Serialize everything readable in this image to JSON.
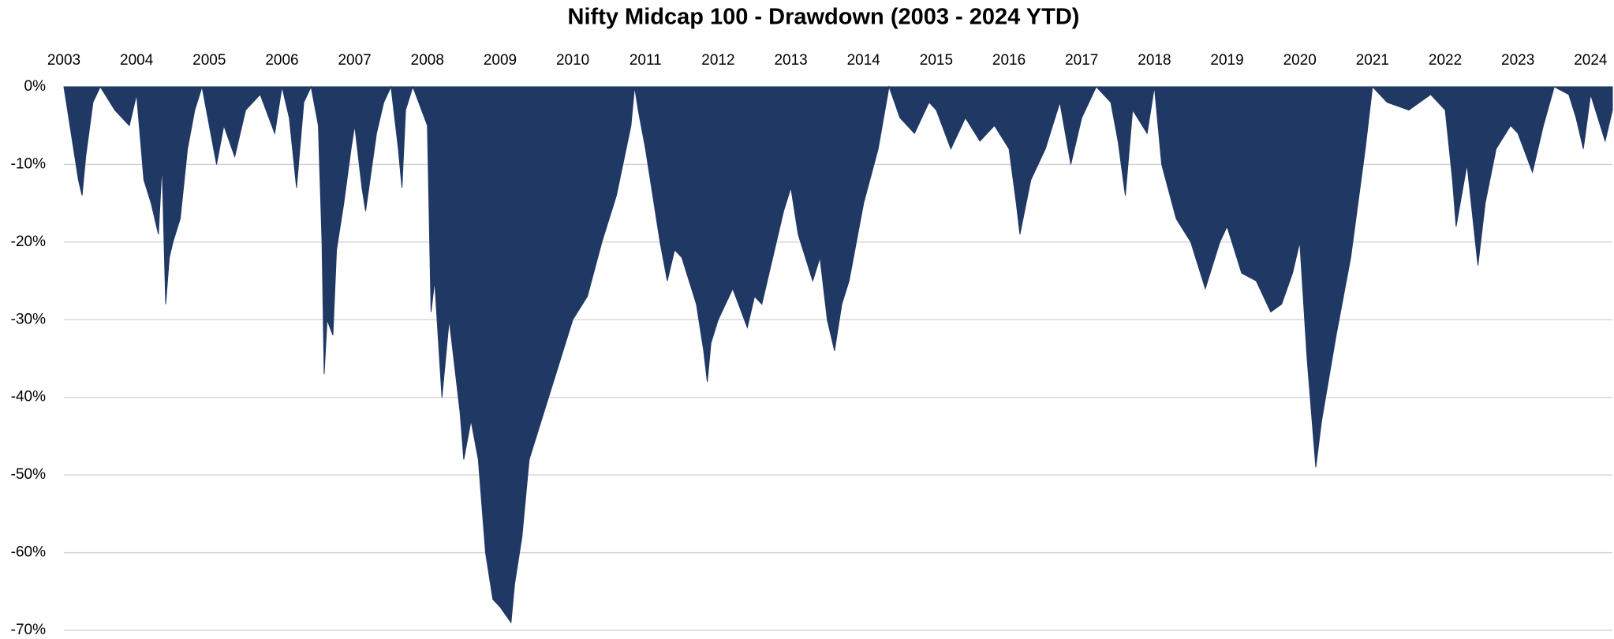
{
  "chart_data": {
    "type": "area",
    "title": "Nifty Midcap 100 - Drawdown (2003 - 2024 YTD)",
    "color": "#203864",
    "grid": true,
    "xlim": [
      2003,
      2024.3
    ],
    "xticks": [
      2003,
      2004,
      2005,
      2006,
      2007,
      2008,
      2009,
      2010,
      2011,
      2012,
      2013,
      2014,
      2015,
      2016,
      2017,
      2018,
      2019,
      2020,
      2021,
      2022,
      2023,
      2024
    ],
    "ylim": [
      -70,
      0
    ],
    "yticks": [
      {
        "value": 0,
        "label": "0%"
      },
      {
        "value": -10,
        "label": "-10%"
      },
      {
        "value": -20,
        "label": "-20%"
      },
      {
        "value": -30,
        "label": "-30%"
      },
      {
        "value": -40,
        "label": "-40%"
      },
      {
        "value": -50,
        "label": "-50%"
      },
      {
        "value": -60,
        "label": "-60%"
      },
      {
        "value": -70,
        "label": "-70%"
      }
    ],
    "x": [
      2003.0,
      2003.1,
      2003.2,
      2003.25,
      2003.3,
      2003.4,
      2003.5,
      2003.7,
      2003.9,
      2004.0,
      2004.1,
      2004.2,
      2004.3,
      2004.35,
      2004.4,
      2004.45,
      2004.5,
      2004.6,
      2004.7,
      2004.8,
      2004.9,
      2005.1,
      2005.2,
      2005.35,
      2005.5,
      2005.7,
      2005.9,
      2006.0,
      2006.1,
      2006.2,
      2006.3,
      2006.4,
      2006.5,
      2006.55,
      2006.58,
      2006.62,
      2006.7,
      2006.75,
      2006.85,
      2006.95,
      2007.0,
      2007.1,
      2007.15,
      2007.3,
      2007.4,
      2007.5,
      2007.6,
      2007.65,
      2007.7,
      2007.8,
      2008.0,
      2008.05,
      2008.1,
      2008.2,
      2008.3,
      2008.45,
      2008.5,
      2008.6,
      2008.7,
      2008.8,
      2008.9,
      2009.0,
      2009.15,
      2009.2,
      2009.3,
      2009.4,
      2009.6,
      2009.8,
      2010.0,
      2010.2,
      2010.4,
      2010.6,
      2010.8,
      2010.85,
      2010.9,
      2011.0,
      2011.1,
      2011.2,
      2011.3,
      2011.4,
      2011.5,
      2011.6,
      2011.7,
      2011.8,
      2011.85,
      2011.9,
      2012.0,
      2012.2,
      2012.4,
      2012.5,
      2012.6,
      2012.7,
      2012.9,
      2013.0,
      2013.1,
      2013.2,
      2013.3,
      2013.4,
      2013.5,
      2013.6,
      2013.7,
      2013.8,
      2013.9,
      2014.0,
      2014.2,
      2014.35,
      2014.5,
      2014.7,
      2014.9,
      2015.0,
      2015.2,
      2015.4,
      2015.6,
      2015.8,
      2016.0,
      2016.1,
      2016.15,
      2016.3,
      2016.5,
      2016.7,
      2016.85,
      2017.0,
      2017.2,
      2017.4,
      2017.5,
      2017.6,
      2017.7,
      2017.9,
      2018.0,
      2018.1,
      2018.3,
      2018.5,
      2018.7,
      2018.9,
      2019.0,
      2019.2,
      2019.4,
      2019.6,
      2019.75,
      2019.9,
      2020.0,
      2020.1,
      2020.22,
      2020.3,
      2020.5,
      2020.7,
      2020.9,
      2021.0,
      2021.2,
      2021.5,
      2021.8,
      2022.0,
      2022.1,
      2022.15,
      2022.3,
      2022.45,
      2022.55,
      2022.7,
      2022.9,
      2023.0,
      2023.2,
      2023.35,
      2023.5,
      2023.7,
      2023.8,
      2023.9,
      2024.0,
      2024.1,
      2024.2,
      2024.3
    ],
    "values": [
      0,
      -6,
      -12,
      -14,
      -9,
      -2,
      0,
      -3,
      -5,
      -1,
      -12,
      -15,
      -19,
      -10,
      -28,
      -22,
      -20,
      -17,
      -8,
      -3,
      0,
      -10,
      -5,
      -9,
      -3,
      -1,
      -6,
      0,
      -4,
      -13,
      -2,
      0,
      -5,
      -20,
      -37,
      -30,
      -32,
      -21,
      -15,
      -8,
      -5,
      -13,
      -16,
      -6,
      -2,
      0,
      -8,
      -13,
      -3,
      0,
      -5,
      -29,
      -25,
      -40,
      -30,
      -42,
      -48,
      -43,
      -48,
      -60,
      -66,
      -67,
      -69,
      -64,
      -58,
      -48,
      -42,
      -36,
      -30,
      -27,
      -20,
      -14,
      -5,
      0,
      -3,
      -8,
      -14,
      -20,
      -25,
      -21,
      -22,
      -25,
      -28,
      -34,
      -38,
      -33,
      -30,
      -26,
      -31,
      -27,
      -28,
      -24,
      -16,
      -13,
      -19,
      -22,
      -25,
      -22,
      -30,
      -34,
      -28,
      -25,
      -20,
      -15,
      -8,
      0,
      -4,
      -6,
      -2,
      -3,
      -8,
      -4,
      -7,
      -5,
      -8,
      -15,
      -19,
      -12,
      -8,
      -2,
      -10,
      -4,
      0,
      -2,
      -7,
      -14,
      -3,
      -6,
      0,
      -10,
      -17,
      -20,
      -26,
      -20,
      -18,
      -24,
      -25,
      -29,
      -28,
      -24,
      -20,
      -35,
      -49,
      -43,
      -32,
      -22,
      -8,
      0,
      -2,
      -3,
      -1,
      -3,
      -12,
      -18,
      -10,
      -23,
      -15,
      -8,
      -5,
      -6,
      -11,
      -5,
      0,
      -1,
      -4,
      -8,
      -1,
      -4,
      -7,
      -3
    ]
  }
}
